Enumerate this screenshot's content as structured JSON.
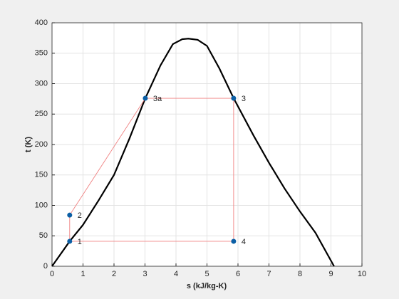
{
  "chart_data": {
    "type": "line",
    "xlabel": "s (kJ/kg-K)",
    "ylabel": "t (K)",
    "xlim": [
      0,
      10
    ],
    "ylim": [
      0,
      400
    ],
    "xticks": [
      0,
      1,
      2,
      3,
      4,
      5,
      6,
      7,
      8,
      9,
      10
    ],
    "yticks": [
      0,
      50,
      100,
      150,
      200,
      250,
      300,
      350,
      400
    ],
    "grid": true,
    "series": [
      {
        "color": "#000000",
        "x": [
          0,
          0.57,
          1,
          1.5,
          2,
          2.5,
          3.01,
          3.5,
          3.9,
          4.2,
          4.4,
          4.7,
          5,
          5.4,
          5.86,
          6.5,
          7,
          7.5,
          8,
          8.5,
          9.1
        ],
        "values": [
          0,
          41,
          68,
          108,
          150,
          210,
          276,
          330,
          365,
          373,
          374,
          372,
          362,
          325,
          276,
          215,
          170,
          128,
          90,
          55,
          0
        ]
      }
    ],
    "points": {
      "color": "#0b5fa5",
      "line_color": "#f08080",
      "labels": [
        "1",
        "2",
        "3a",
        "3",
        "4"
      ],
      "x": [
        0.57,
        0.57,
        3.01,
        5.86,
        5.86
      ],
      "values": [
        41,
        84,
        276,
        276,
        41
      ]
    }
  }
}
